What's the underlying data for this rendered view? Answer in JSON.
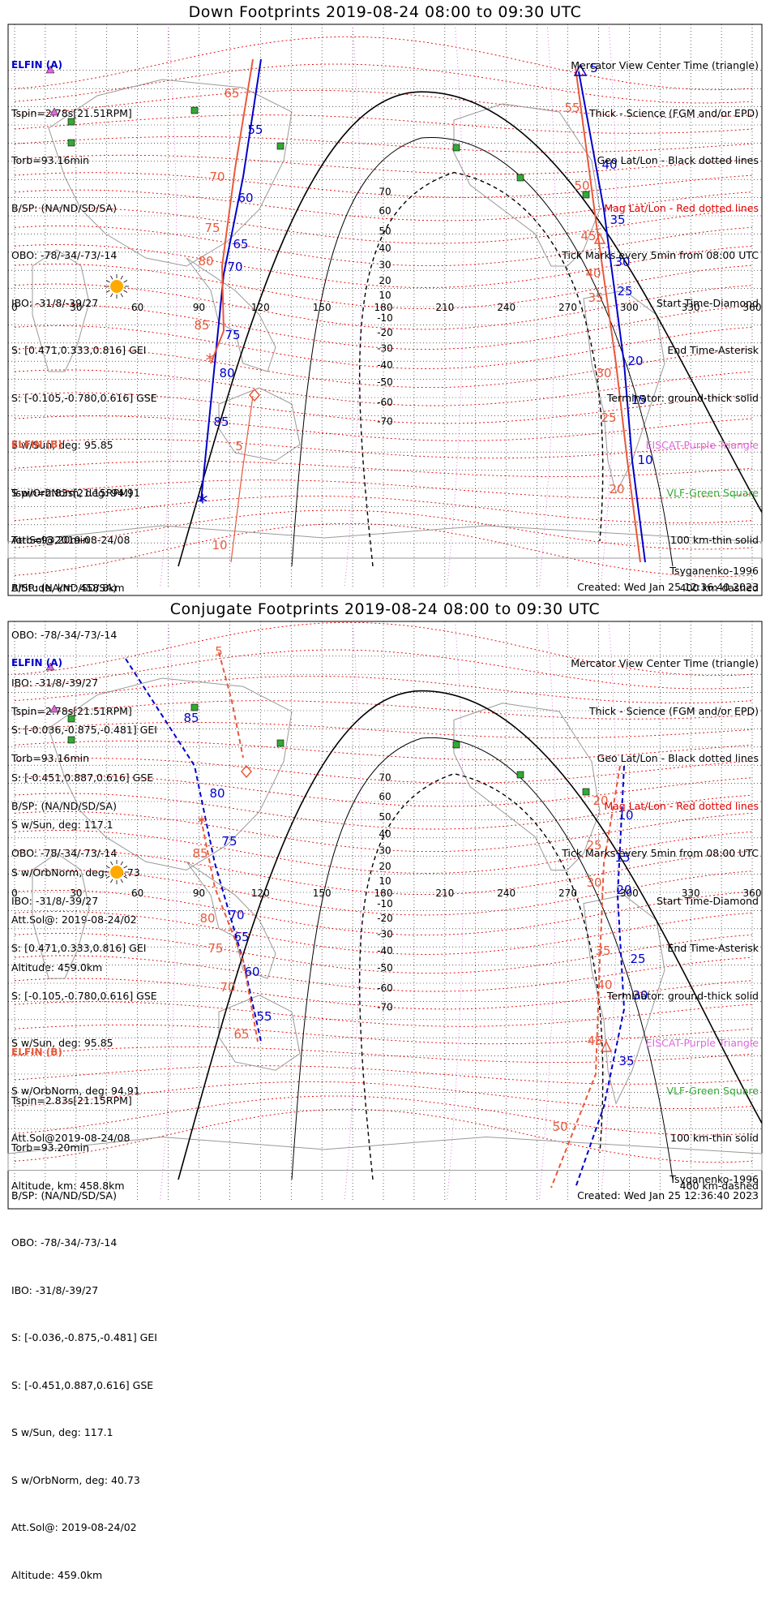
{
  "panels": [
    {
      "title": "Down Footprints 2019-08-24 08:00 to 09:30 UTC",
      "elfin_a": {
        "name": "ELFIN (A)",
        "lines": [
          "Tspin=2.78s[21.51RPM]",
          "Torb=93.16min",
          "B/SP: (NA/ND/SD/SA)",
          "OBO: -78/-34/-73/-14",
          "IBO: -31/8/-39/27",
          "S: [0.471,0.333,0.816] GEI",
          "S: [-0.105,-0.780,0.616] GSE",
          "S w/Sun, deg: 95.85",
          "S w/OrbNorm, deg: 94.91",
          "Att.Sol@2019-08-24/08",
          "Altitude, km: 458.8km"
        ]
      },
      "elfin_b": {
        "name": "ELFIN (B)",
        "lines": [
          "Tspin=2.83s[21.15RPM]",
          "Torb=93.20min",
          "B/SP: (NA/ND/SD/SA)",
          "OBO: -78/-34/-73/-14",
          "IBO: -31/8/-39/27",
          "S: [-0.036,-0.875,-0.481] GEI",
          "S: [-0.451,0.887,0.616] GSE",
          "S w/Sun, deg: 117.1",
          "S w/OrbNorm, deg: 40.73",
          "Att.Sol@: 2019-08-24/02",
          "Altitude: 459.0km"
        ]
      },
      "tsyganenko": "Tsyganenko-1996",
      "created": "Created: Wed Jan 25 12:36:40 2023",
      "track_a": {
        "labels": [
          "55",
          "60",
          "65",
          "70",
          "75",
          "80",
          "85"
        ]
      },
      "track_b": {
        "labels": [
          "65",
          "70",
          "75",
          "80",
          "85",
          "5",
          "10"
        ]
      },
      "track_a2": {
        "labels": [
          "5",
          "40",
          "35",
          "30",
          "25",
          "20",
          "15",
          "10"
        ]
      },
      "track_b2": {
        "labels": [
          "55",
          "50",
          "45",
          "40",
          "35",
          "30",
          "25",
          "20"
        ]
      }
    },
    {
      "title": "Conjugate Footprints 2019-08-24 08:00 to 09:30 UTC",
      "elfin_a": {
        "name": "ELFIN (A)",
        "lines": [
          "Tspin=2.78s[21.51RPM]",
          "Torb=93.16min",
          "B/SP: (NA/ND/SD/SA)",
          "OBO: -78/-34/-73/-14",
          "IBO: -31/8/-39/27",
          "S: [0.471,0.333,0.816] GEI",
          "S: [-0.105,-0.780,0.616] GSE",
          "S w/Sun, deg: 95.85",
          "S w/OrbNorm, deg: 94.91",
          "Att.Sol@2019-08-24/08",
          "Altitude, km: 458.8km"
        ]
      },
      "elfin_b": {
        "name": "ELFIN (B)",
        "lines": [
          "Tspin=2.83s[21.15RPM]",
          "Torb=93.20min",
          "B/SP: (NA/ND/SD/SA)",
          "OBO: -78/-34/-73/-14",
          "IBO: -31/8/-39/27",
          "S: [-0.036,-0.875,-0.481] GEI",
          "S: [-0.451,0.887,0.616] GSE",
          "S w/Sun, deg: 117.1",
          "S w/OrbNorm, deg: 40.73",
          "Att.Sol@: 2019-08-24/02",
          "Altitude: 459.0km"
        ]
      },
      "tsyganenko": "Tsyganenko-1996",
      "created": "Created: Wed Jan 25 12:36:40 2023",
      "track_a": {
        "labels": [
          "85",
          "80",
          "75",
          "70",
          "65",
          "60",
          "55"
        ]
      },
      "track_b": {
        "labels": [
          "5",
          "85",
          "80",
          "75",
          "70",
          "65"
        ]
      },
      "track_a2": {
        "labels": [
          "10",
          "15",
          "20",
          "25",
          "30",
          "35"
        ]
      },
      "track_b2": {
        "labels": [
          "20",
          "25",
          "30",
          "35",
          "40",
          "45",
          "50"
        ]
      }
    }
  ],
  "legend": {
    "lines": [
      "Mercator View Center Time (triangle)",
      "Thick - Science (FGM and/or EPD)",
      "Geo Lat/Lon - Black dotted lines",
      "Mag Lat/Lon - Red dotted lines",
      "Tick Marks every 5min from 08:00 UTC",
      "Start Time-Diamond",
      "End Time-Asterisk",
      "Terminator: ground-thick solid",
      "EISCAT-Purple Triangle",
      "VLF-Green Square",
      "100 km-thin solid",
      "400 km-dashed"
    ]
  },
  "axes": {
    "lon_ticks": [
      "0",
      "30",
      "60",
      "90",
      "120",
      "150",
      "180",
      "210",
      "240",
      "270",
      "300",
      "330",
      "360"
    ],
    "lat_ticks": [
      "70",
      "60",
      "50",
      "40",
      "30",
      "20",
      "10",
      "-10",
      "-20",
      "-30",
      "-40",
      "-50",
      "-60",
      "-70"
    ]
  },
  "colors": {
    "elfin_a": "#0000cc",
    "elfin_b": "#e8593c",
    "mag_grid": "#e00000",
    "geo_grid": "#000000",
    "eiscat": "#dd66dd",
    "vlf": "#33aa33",
    "sun": "#ffaa00"
  }
}
